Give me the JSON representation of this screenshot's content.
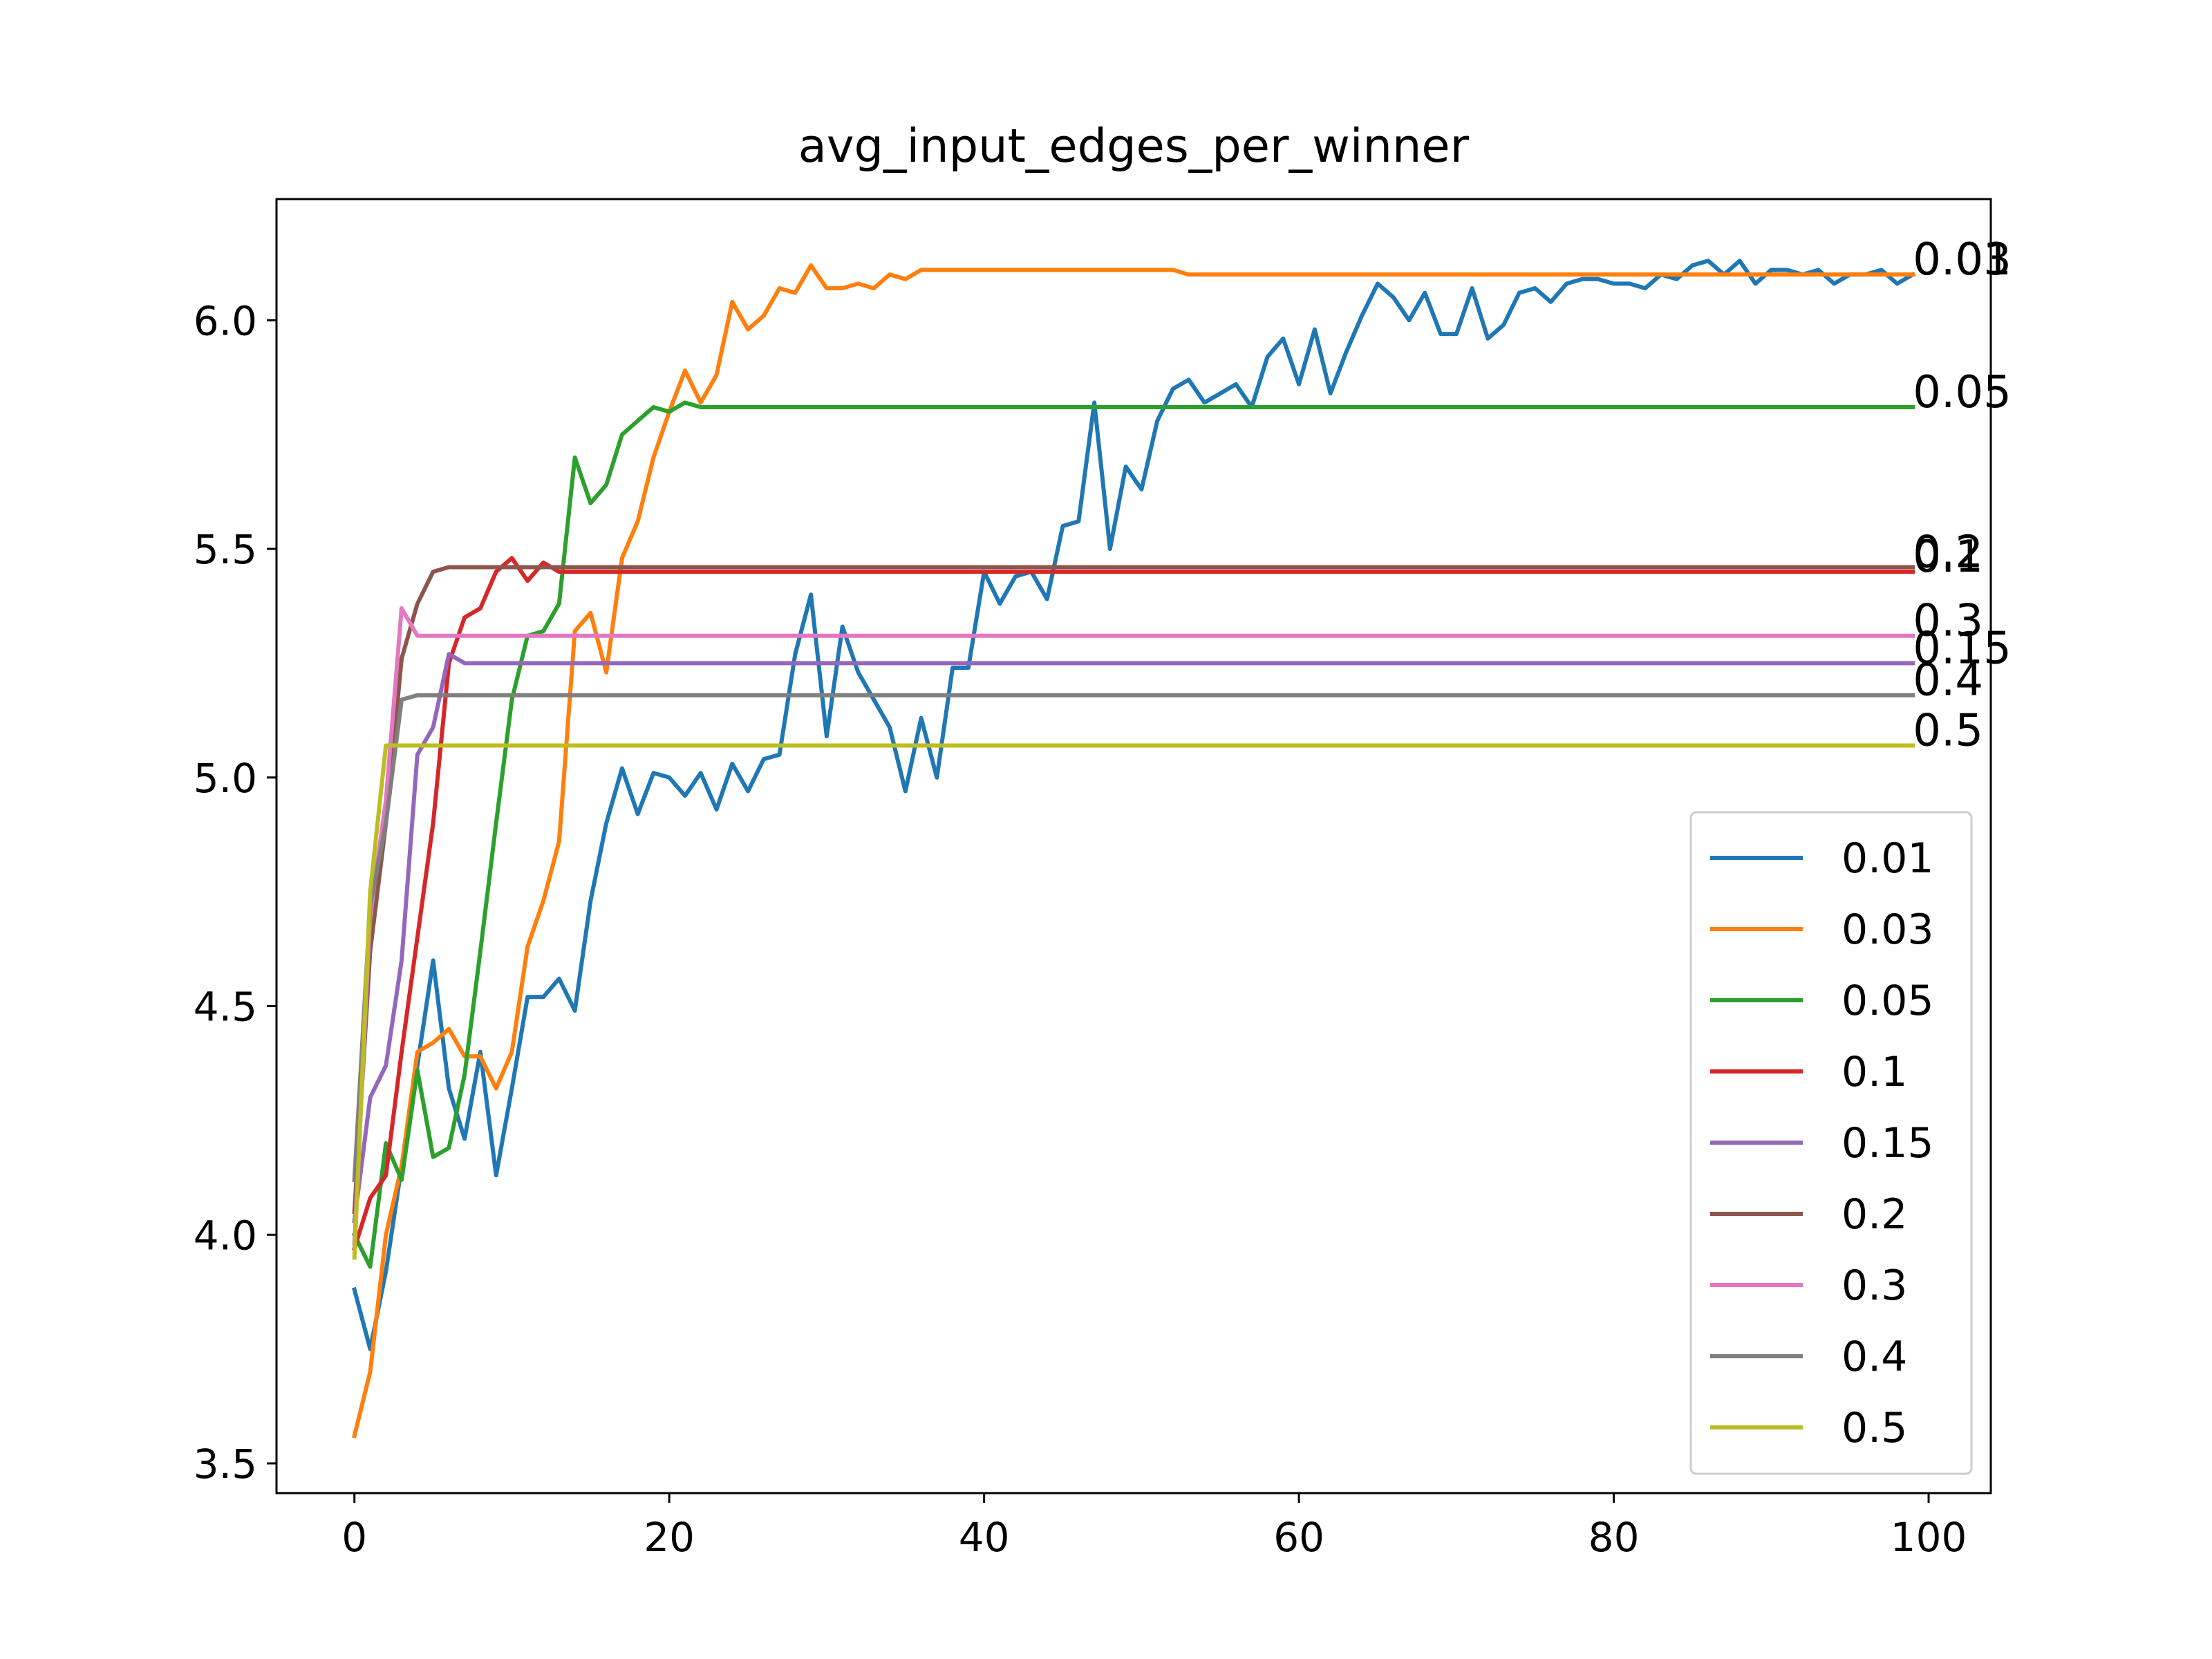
{
  "chart_data": {
    "type": "line",
    "title": "avg_input_edges_per_winner",
    "xlabel": "",
    "ylabel": "",
    "xlim": [
      -4.95,
      103.95
    ],
    "ylim": [
      3.435,
      6.265
    ],
    "xticks": [
      0,
      20,
      40,
      60,
      80,
      100
    ],
    "yticks": [
      3.5,
      4.0,
      4.5,
      5.0,
      5.5,
      6.0
    ],
    "xtick_labels": [
      "0",
      "20",
      "40",
      "60",
      "80",
      "100"
    ],
    "ytick_labels": [
      "3.5",
      "4.0",
      "4.5",
      "5.0",
      "5.5",
      "6.0"
    ],
    "grid": false,
    "legend_position": "lower-right",
    "x_start": 0,
    "x_step": 1,
    "series": [
      {
        "name": "0.01",
        "color": "#1f77b4",
        "end_label": "0.01",
        "values": [
          3.88,
          3.75,
          3.92,
          4.15,
          4.37,
          4.6,
          4.32,
          4.21,
          4.4,
          4.13,
          4.32,
          4.52,
          4.52,
          4.56,
          4.49,
          4.73,
          4.9,
          5.02,
          4.92,
          5.01,
          5.0,
          4.96,
          5.01,
          4.93,
          5.03,
          4.97,
          5.04,
          5.05,
          5.27,
          5.4,
          5.09,
          5.33,
          5.23,
          5.17,
          5.11,
          4.97,
          5.13,
          5.0,
          5.24,
          5.24,
          5.45,
          5.38,
          5.44,
          5.45,
          5.39,
          5.55,
          5.56,
          5.82,
          5.5,
          5.68,
          5.63,
          5.78,
          5.85,
          5.87,
          5.82,
          5.84,
          5.86,
          5.81,
          5.92,
          5.96,
          5.86,
          5.98,
          5.84,
          5.93,
          6.01,
          6.08,
          6.05,
          6.0,
          6.06,
          5.97,
          5.97,
          6.07,
          5.96,
          5.99,
          6.06,
          6.07,
          6.04,
          6.08,
          6.09,
          6.09,
          6.08,
          6.08,
          6.07,
          6.1,
          6.09,
          6.12,
          6.13,
          6.1,
          6.13,
          6.08,
          6.11,
          6.11,
          6.1,
          6.11,
          6.08,
          6.1,
          6.1,
          6.11,
          6.08,
          6.1
        ]
      },
      {
        "name": "0.03",
        "color": "#ff7f0e",
        "end_label": "0.03",
        "values": [
          3.56,
          3.7,
          4.0,
          4.15,
          4.4,
          4.42,
          4.45,
          4.39,
          4.39,
          4.32,
          4.4,
          4.63,
          4.73,
          4.86,
          5.32,
          5.36,
          5.23,
          5.48,
          5.56,
          5.7,
          5.8,
          5.89,
          5.82,
          5.88,
          6.04,
          5.98,
          6.01,
          6.07,
          6.06,
          6.12,
          6.07,
          6.07,
          6.08,
          6.07,
          6.1,
          6.09,
          6.11,
          6.11,
          6.11,
          6.11,
          6.11,
          6.11,
          6.11,
          6.11,
          6.11,
          6.11,
          6.11,
          6.11,
          6.11,
          6.11,
          6.11,
          6.11,
          6.11,
          6.1,
          6.1,
          6.1,
          6.1,
          6.1,
          6.1,
          6.1,
          6.1,
          6.1,
          6.1,
          6.1,
          6.1,
          6.1,
          6.1,
          6.1,
          6.1,
          6.1,
          6.1,
          6.1,
          6.1,
          6.1,
          6.1,
          6.1,
          6.1,
          6.1,
          6.1,
          6.1,
          6.1,
          6.1,
          6.1,
          6.1,
          6.1,
          6.1,
          6.1,
          6.1,
          6.1,
          6.1,
          6.1,
          6.1,
          6.1,
          6.1,
          6.1,
          6.1,
          6.1,
          6.1,
          6.1,
          6.1
        ]
      },
      {
        "name": "0.05",
        "color": "#2ca02c",
        "end_label": "0.05",
        "values": [
          4.0,
          3.93,
          4.2,
          4.12,
          4.36,
          4.17,
          4.19,
          4.35,
          4.62,
          4.9,
          5.17,
          5.31,
          5.32,
          5.38,
          5.7,
          5.6,
          5.64,
          5.75,
          5.78,
          5.81,
          5.8,
          5.82,
          5.81,
          5.81,
          5.81,
          5.81,
          5.81,
          5.81,
          5.81,
          5.81,
          5.81,
          5.81,
          5.81,
          5.81,
          5.81,
          5.81,
          5.81,
          5.81,
          5.81,
          5.81,
          5.81,
          5.81,
          5.81,
          5.81,
          5.81,
          5.81,
          5.81,
          5.81,
          5.81,
          5.81,
          5.81,
          5.81,
          5.81,
          5.81,
          5.81,
          5.81,
          5.81,
          5.81,
          5.81,
          5.81,
          5.81,
          5.81,
          5.81,
          5.81,
          5.81,
          5.81,
          5.81,
          5.81,
          5.81,
          5.81,
          5.81,
          5.81,
          5.81,
          5.81,
          5.81,
          5.81,
          5.81,
          5.81,
          5.81,
          5.81,
          5.81,
          5.81,
          5.81,
          5.81,
          5.81,
          5.81,
          5.81,
          5.81,
          5.81,
          5.81,
          5.81,
          5.81,
          5.81,
          5.81,
          5.81,
          5.81,
          5.81,
          5.81,
          5.81,
          5.81
        ]
      },
      {
        "name": "0.1",
        "color": "#d62728",
        "end_label": "0.1",
        "values": [
          3.97,
          4.08,
          4.13,
          4.4,
          4.65,
          4.9,
          5.25,
          5.35,
          5.37,
          5.45,
          5.48,
          5.43,
          5.47,
          5.45,
          5.45,
          5.45,
          5.45,
          5.45,
          5.45,
          5.45,
          5.45,
          5.45,
          5.45,
          5.45,
          5.45,
          5.45,
          5.45,
          5.45,
          5.45,
          5.45,
          5.45,
          5.45,
          5.45,
          5.45,
          5.45,
          5.45,
          5.45,
          5.45,
          5.45,
          5.45,
          5.45,
          5.45,
          5.45,
          5.45,
          5.45,
          5.45,
          5.45,
          5.45,
          5.45,
          5.45,
          5.45,
          5.45,
          5.45,
          5.45,
          5.45,
          5.45,
          5.45,
          5.45,
          5.45,
          5.45,
          5.45,
          5.45,
          5.45,
          5.45,
          5.45,
          5.45,
          5.45,
          5.45,
          5.45,
          5.45,
          5.45,
          5.45,
          5.45,
          5.45,
          5.45,
          5.45,
          5.45,
          5.45,
          5.45,
          5.45,
          5.45,
          5.45,
          5.45,
          5.45,
          5.45,
          5.45,
          5.45,
          5.45,
          5.45,
          5.45,
          5.45,
          5.45,
          5.45,
          5.45,
          5.45,
          5.45,
          5.45,
          5.45,
          5.45,
          5.45
        ]
      },
      {
        "name": "0.15",
        "color": "#9467bd",
        "end_label": "0.15",
        "values": [
          4.03,
          4.3,
          4.37,
          4.6,
          5.05,
          5.11,
          5.27,
          5.25,
          5.25,
          5.25,
          5.25,
          5.25,
          5.25,
          5.25,
          5.25,
          5.25,
          5.25,
          5.25,
          5.25,
          5.25,
          5.25,
          5.25,
          5.25,
          5.25,
          5.25,
          5.25,
          5.25,
          5.25,
          5.25,
          5.25,
          5.25,
          5.25,
          5.25,
          5.25,
          5.25,
          5.25,
          5.25,
          5.25,
          5.25,
          5.25,
          5.25,
          5.25,
          5.25,
          5.25,
          5.25,
          5.25,
          5.25,
          5.25,
          5.25,
          5.25,
          5.25,
          5.25,
          5.25,
          5.25,
          5.25,
          5.25,
          5.25,
          5.25,
          5.25,
          5.25,
          5.25,
          5.25,
          5.25,
          5.25,
          5.25,
          5.25,
          5.25,
          5.25,
          5.25,
          5.25,
          5.25,
          5.25,
          5.25,
          5.25,
          5.25,
          5.25,
          5.25,
          5.25,
          5.25,
          5.25,
          5.25,
          5.25,
          5.25,
          5.25,
          5.25,
          5.25,
          5.25,
          5.25,
          5.25,
          5.25,
          5.25,
          5.25,
          5.25,
          5.25,
          5.25,
          5.25,
          5.25,
          5.25,
          5.25,
          5.25
        ]
      },
      {
        "name": "0.2",
        "color": "#8c564b",
        "end_label": "0.2",
        "values": [
          4.05,
          4.62,
          4.9,
          5.26,
          5.38,
          5.45,
          5.46,
          5.46,
          5.46,
          5.46,
          5.46,
          5.46,
          5.46,
          5.46,
          5.46,
          5.46,
          5.46,
          5.46,
          5.46,
          5.46,
          5.46,
          5.46,
          5.46,
          5.46,
          5.46,
          5.46,
          5.46,
          5.46,
          5.46,
          5.46,
          5.46,
          5.46,
          5.46,
          5.46,
          5.46,
          5.46,
          5.46,
          5.46,
          5.46,
          5.46,
          5.46,
          5.46,
          5.46,
          5.46,
          5.46,
          5.46,
          5.46,
          5.46,
          5.46,
          5.46,
          5.46,
          5.46,
          5.46,
          5.46,
          5.46,
          5.46,
          5.46,
          5.46,
          5.46,
          5.46,
          5.46,
          5.46,
          5.46,
          5.46,
          5.46,
          5.46,
          5.46,
          5.46,
          5.46,
          5.46,
          5.46,
          5.46,
          5.46,
          5.46,
          5.46,
          5.46,
          5.46,
          5.46,
          5.46,
          5.46,
          5.46,
          5.46,
          5.46,
          5.46,
          5.46,
          5.46,
          5.46,
          5.46,
          5.46,
          5.46,
          5.46,
          5.46,
          5.46,
          5.46,
          5.46,
          5.46,
          5.46,
          5.46,
          5.46,
          5.46
        ]
      },
      {
        "name": "0.3",
        "color": "#e377c2",
        "end_label": "0.3",
        "values": [
          3.98,
          4.7,
          4.95,
          5.37,
          5.31,
          5.31,
          5.31,
          5.31,
          5.31,
          5.31,
          5.31,
          5.31,
          5.31,
          5.31,
          5.31,
          5.31,
          5.31,
          5.31,
          5.31,
          5.31,
          5.31,
          5.31,
          5.31,
          5.31,
          5.31,
          5.31,
          5.31,
          5.31,
          5.31,
          5.31,
          5.31,
          5.31,
          5.31,
          5.31,
          5.31,
          5.31,
          5.31,
          5.31,
          5.31,
          5.31,
          5.31,
          5.31,
          5.31,
          5.31,
          5.31,
          5.31,
          5.31,
          5.31,
          5.31,
          5.31,
          5.31,
          5.31,
          5.31,
          5.31,
          5.31,
          5.31,
          5.31,
          5.31,
          5.31,
          5.31,
          5.31,
          5.31,
          5.31,
          5.31,
          5.31,
          5.31,
          5.31,
          5.31,
          5.31,
          5.31,
          5.31,
          5.31,
          5.31,
          5.31,
          5.31,
          5.31,
          5.31,
          5.31,
          5.31,
          5.31,
          5.31,
          5.31,
          5.31,
          5.31,
          5.31,
          5.31,
          5.31,
          5.31,
          5.31,
          5.31,
          5.31,
          5.31,
          5.31,
          5.31,
          5.31,
          5.31,
          5.31,
          5.31,
          5.31,
          5.31
        ]
      },
      {
        "name": "0.4",
        "color": "#7f7f7f",
        "end_label": "0.4",
        "values": [
          4.12,
          4.72,
          4.9,
          5.17,
          5.18,
          5.18,
          5.18,
          5.18,
          5.18,
          5.18,
          5.18,
          5.18,
          5.18,
          5.18,
          5.18,
          5.18,
          5.18,
          5.18,
          5.18,
          5.18,
          5.18,
          5.18,
          5.18,
          5.18,
          5.18,
          5.18,
          5.18,
          5.18,
          5.18,
          5.18,
          5.18,
          5.18,
          5.18,
          5.18,
          5.18,
          5.18,
          5.18,
          5.18,
          5.18,
          5.18,
          5.18,
          5.18,
          5.18,
          5.18,
          5.18,
          5.18,
          5.18,
          5.18,
          5.18,
          5.18,
          5.18,
          5.18,
          5.18,
          5.18,
          5.18,
          5.18,
          5.18,
          5.18,
          5.18,
          5.18,
          5.18,
          5.18,
          5.18,
          5.18,
          5.18,
          5.18,
          5.18,
          5.18,
          5.18,
          5.18,
          5.18,
          5.18,
          5.18,
          5.18,
          5.18,
          5.18,
          5.18,
          5.18,
          5.18,
          5.18,
          5.18,
          5.18,
          5.18,
          5.18,
          5.18,
          5.18,
          5.18,
          5.18,
          5.18,
          5.18,
          5.18,
          5.18,
          5.18,
          5.18,
          5.18,
          5.18,
          5.18,
          5.18,
          5.18,
          5.18
        ]
      },
      {
        "name": "0.5",
        "color": "#bcbd22",
        "end_label": "0.5",
        "values": [
          3.95,
          4.75,
          5.07,
          5.07,
          5.07,
          5.07,
          5.07,
          5.07,
          5.07,
          5.07,
          5.07,
          5.07,
          5.07,
          5.07,
          5.07,
          5.07,
          5.07,
          5.07,
          5.07,
          5.07,
          5.07,
          5.07,
          5.07,
          5.07,
          5.07,
          5.07,
          5.07,
          5.07,
          5.07,
          5.07,
          5.07,
          5.07,
          5.07,
          5.07,
          5.07,
          5.07,
          5.07,
          5.07,
          5.07,
          5.07,
          5.07,
          5.07,
          5.07,
          5.07,
          5.07,
          5.07,
          5.07,
          5.07,
          5.07,
          5.07,
          5.07,
          5.07,
          5.07,
          5.07,
          5.07,
          5.07,
          5.07,
          5.07,
          5.07,
          5.07,
          5.07,
          5.07,
          5.07,
          5.07,
          5.07,
          5.07,
          5.07,
          5.07,
          5.07,
          5.07,
          5.07,
          5.07,
          5.07,
          5.07,
          5.07,
          5.07,
          5.07,
          5.07,
          5.07,
          5.07,
          5.07,
          5.07,
          5.07,
          5.07,
          5.07,
          5.07,
          5.07,
          5.07,
          5.07,
          5.07,
          5.07,
          5.07,
          5.07,
          5.07,
          5.07,
          5.07,
          5.07,
          5.07,
          5.07,
          5.07
        ]
      }
    ]
  }
}
